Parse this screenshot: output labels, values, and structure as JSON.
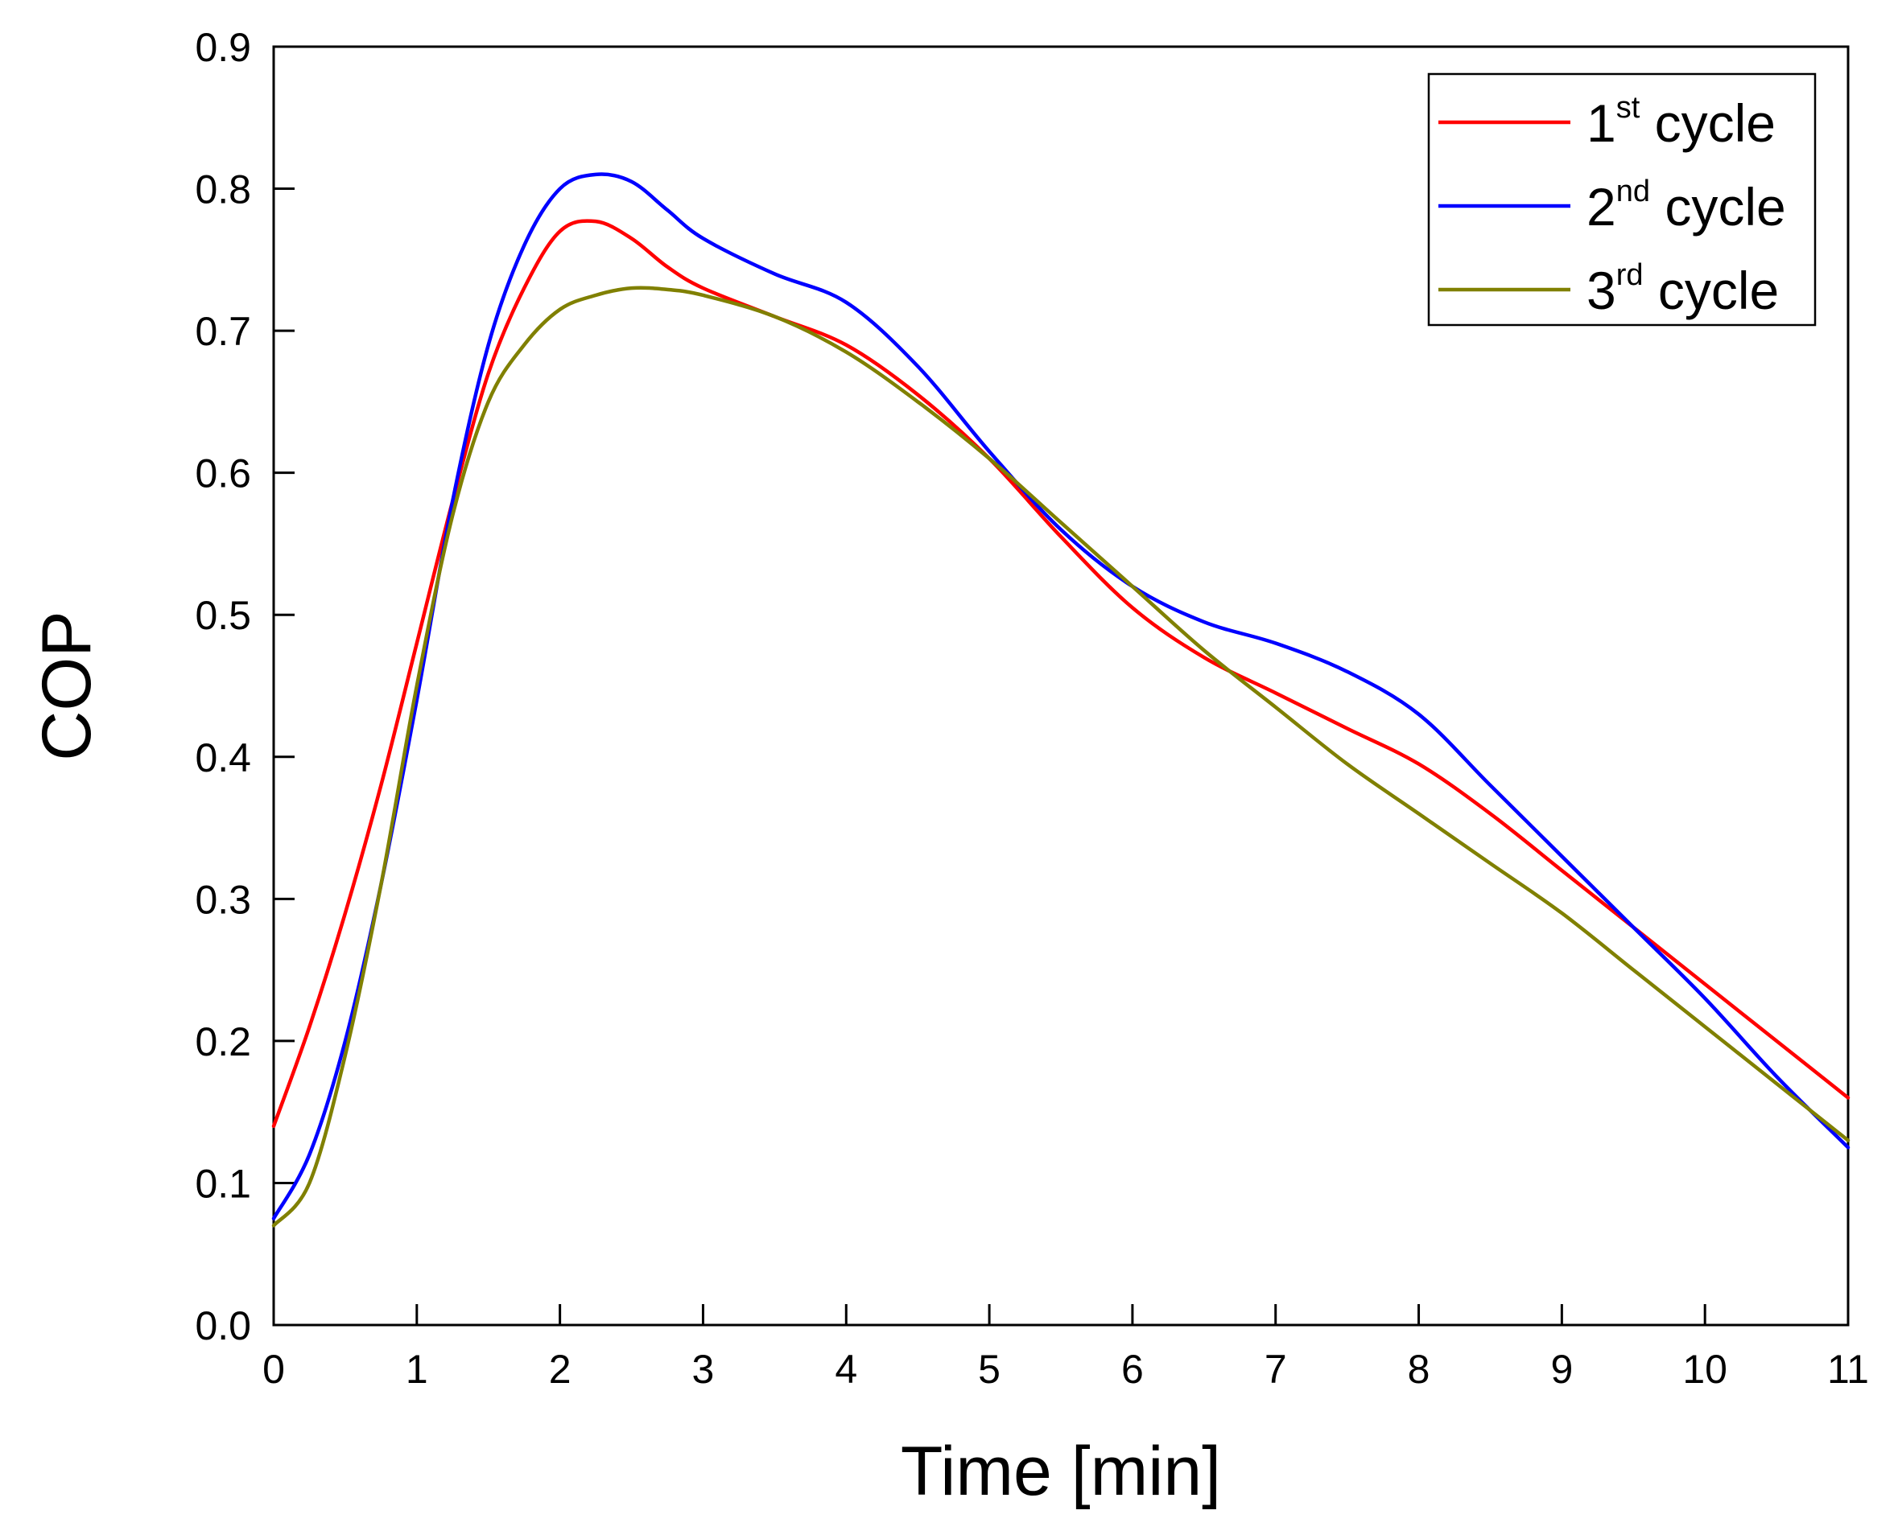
{
  "chart_data": {
    "type": "line",
    "title": "",
    "xlabel": "Time [min]",
    "ylabel": "COP",
    "xlim": [
      0,
      11
    ],
    "ylim": [
      0.0,
      0.9
    ],
    "xticks": [
      0,
      1,
      2,
      3,
      4,
      5,
      6,
      7,
      8,
      9,
      10,
      11
    ],
    "yticks": [
      0.0,
      0.1,
      0.2,
      0.3,
      0.4,
      0.5,
      0.6,
      0.7,
      0.8,
      0.9
    ],
    "xtick_labels": [
      "0",
      "1",
      "2",
      "3",
      "4",
      "5",
      "6",
      "7",
      "8",
      "9",
      "10",
      "11"
    ],
    "ytick_labels": [
      "0.0",
      "0.1",
      "0.2",
      "0.3",
      "0.4",
      "0.5",
      "0.6",
      "0.7",
      "0.8",
      "0.9"
    ],
    "grid": false,
    "legend_position": "top-right",
    "series": [
      {
        "name": "1st cycle",
        "label_base": "1",
        "label_sup": "st",
        "label_rest": " cycle",
        "color": "#ff0000",
        "x": [
          0,
          0.25,
          0.5,
          0.75,
          1.0,
          1.25,
          1.5,
          1.75,
          2.0,
          2.25,
          2.5,
          2.75,
          3.0,
          3.5,
          4.0,
          4.5,
          5.0,
          5.5,
          6.0,
          6.5,
          7.0,
          7.5,
          8.0,
          8.5,
          9.0,
          9.5,
          10.0,
          10.5,
          11.0
        ],
        "y": [
          0.14,
          0.21,
          0.29,
          0.38,
          0.48,
          0.58,
          0.67,
          0.73,
          0.77,
          0.777,
          0.765,
          0.745,
          0.73,
          0.71,
          0.69,
          0.655,
          0.61,
          0.555,
          0.505,
          0.47,
          0.445,
          0.42,
          0.395,
          0.36,
          0.32,
          0.28,
          0.24,
          0.2,
          0.16
        ]
      },
      {
        "name": "2nd cycle",
        "label_base": "2",
        "label_sup": "nd",
        "label_rest": " cycle",
        "color": "#0000ff",
        "x": [
          0,
          0.25,
          0.5,
          0.75,
          1.0,
          1.25,
          1.5,
          1.75,
          2.0,
          2.25,
          2.5,
          2.75,
          3.0,
          3.5,
          4.0,
          4.5,
          5.0,
          5.5,
          6.0,
          6.5,
          7.0,
          7.5,
          8.0,
          8.5,
          9.0,
          9.5,
          10.0,
          10.5,
          11.0
        ],
        "y": [
          0.075,
          0.12,
          0.2,
          0.31,
          0.44,
          0.58,
          0.69,
          0.76,
          0.8,
          0.81,
          0.805,
          0.785,
          0.765,
          0.74,
          0.72,
          0.675,
          0.615,
          0.56,
          0.52,
          0.495,
          0.48,
          0.46,
          0.43,
          0.38,
          0.33,
          0.28,
          0.23,
          0.175,
          0.125
        ]
      },
      {
        "name": "3rd cycle",
        "label_base": "3",
        "label_sup": "rd",
        "label_rest": " cycle",
        "color": "#808000",
        "x": [
          0,
          0.25,
          0.5,
          0.75,
          1.0,
          1.25,
          1.5,
          1.75,
          2.0,
          2.25,
          2.5,
          2.75,
          3.0,
          3.5,
          4.0,
          4.5,
          5.0,
          5.5,
          6.0,
          6.5,
          7.0,
          7.5,
          8.0,
          8.5,
          9.0,
          9.5,
          10.0,
          10.5,
          11.0
        ],
        "y": [
          0.07,
          0.1,
          0.19,
          0.31,
          0.45,
          0.57,
          0.65,
          0.69,
          0.715,
          0.725,
          0.73,
          0.729,
          0.725,
          0.71,
          0.685,
          0.65,
          0.61,
          0.565,
          0.52,
          0.475,
          0.435,
          0.395,
          0.36,
          0.325,
          0.29,
          0.25,
          0.21,
          0.17,
          0.13
        ]
      }
    ]
  }
}
